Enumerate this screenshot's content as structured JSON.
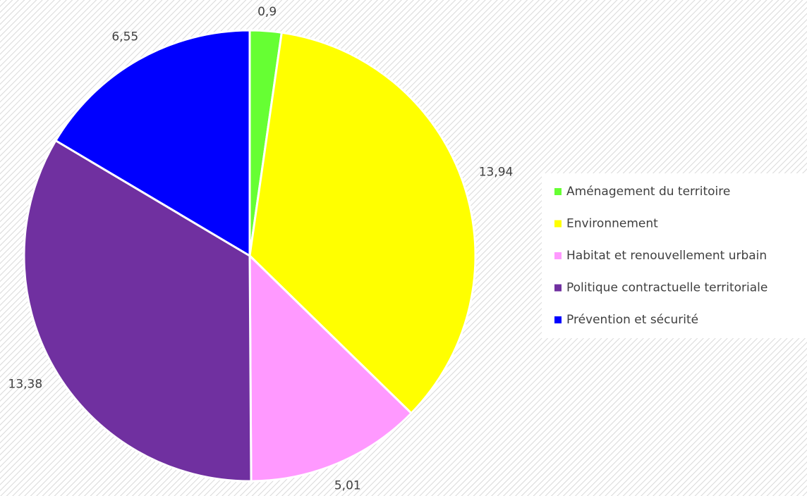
{
  "chart_data": {
    "type": "pie",
    "categories": [
      "Aménagement du territoire",
      "Environnement",
      "Habitat et renouvellement urbain",
      "Politique contractuelle territoriale",
      "Prévention et sécurité"
    ],
    "values": [
      0.9,
      13.94,
      5.01,
      13.38,
      6.55
    ],
    "value_labels": [
      "0,9",
      "13,94",
      "5,01",
      "13,38",
      "6,55"
    ],
    "colors": [
      "#66ff33",
      "#ffff00",
      "#ff99ff",
      "#7030a0",
      "#0000ff"
    ],
    "legend": "right"
  }
}
